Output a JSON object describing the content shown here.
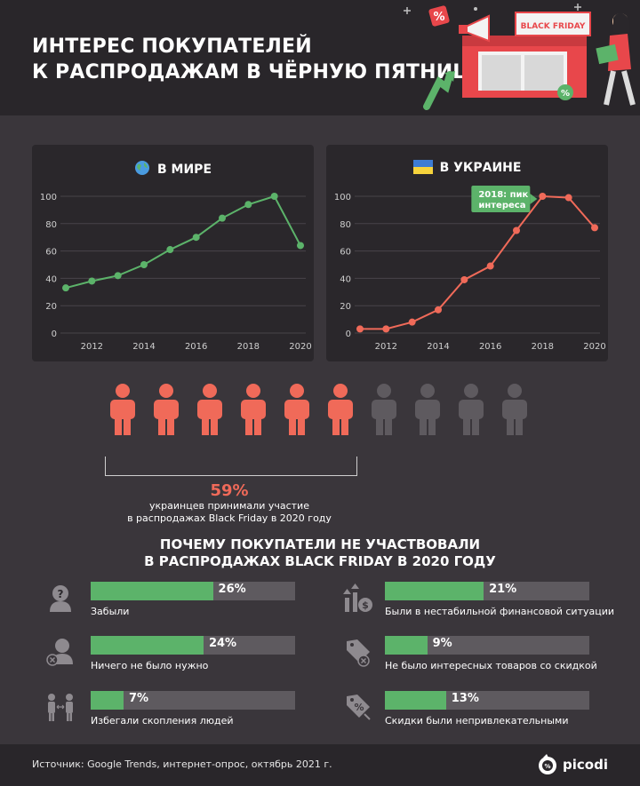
{
  "header": {
    "title_lines": [
      "ИНТЕРЕС ПОКУПАТЕЛЕЙ",
      "К РАСПРОДАЖАМ В ЧЁРНУЮ ПЯТНИЦУ"
    ],
    "banner_text": "BLACK FRIDAY"
  },
  "chart_data": [
    {
      "type": "line",
      "title": "В МИРЕ",
      "title_icon": "globe-icon",
      "x": [
        2011,
        2012,
        2013,
        2014,
        2015,
        2016,
        2017,
        2018,
        2019,
        2020
      ],
      "x_ticks": [
        2012,
        2014,
        2016,
        2018,
        2020
      ],
      "y_ticks": [
        0,
        20,
        40,
        60,
        80,
        100
      ],
      "ylim": [
        0,
        100
      ],
      "series": [
        {
          "values": [
            33,
            38,
            42,
            50,
            61,
            70,
            84,
            94,
            100,
            64
          ],
          "color": "#5cb36a"
        }
      ],
      "grid": true
    },
    {
      "type": "line",
      "title": "В УКРАИНЕ",
      "title_icon": "ukraine-flag-icon",
      "x": [
        2011,
        2012,
        2013,
        2014,
        2015,
        2016,
        2017,
        2018,
        2019,
        2020
      ],
      "x_ticks": [
        2012,
        2014,
        2016,
        2018,
        2020
      ],
      "y_ticks": [
        0,
        20,
        40,
        60,
        80,
        100
      ],
      "ylim": [
        0,
        100
      ],
      "series": [
        {
          "values": [
            3,
            3,
            8,
            17,
            39,
            49,
            75,
            100,
            99,
            77
          ],
          "color": "#f06a59"
        }
      ],
      "grid": true,
      "annotation": {
        "lines": [
          "2018: пик",
          "интереса"
        ],
        "x": 2018,
        "y": 100,
        "color": "#5cb36a"
      }
    }
  ],
  "participation": {
    "total_people": 10,
    "highlighted_people": 6,
    "percent": "59%",
    "caption_lines": [
      "украинцев принимали участие",
      "в распродажах Black Friday в 2020 году"
    ],
    "highlight_color": "#f06a59",
    "rest_color": "#5e5a5f"
  },
  "reasons": {
    "title_lines": [
      "ПОЧЕМУ ПОКУПАТЕЛИ НЕ УЧАСТВОВАЛИ",
      "В РАСПРОДАЖАХ BLACK FRIDAY В 2020 ГОДУ"
    ],
    "bar_scale_max": 100,
    "items": [
      {
        "value": 26,
        "value_label": "26%",
        "label": "Забыли",
        "icon": "question-head-icon"
      },
      {
        "value": 21,
        "value_label": "21%",
        "label": "Были в нестабильной финансовой ситуации",
        "icon": "finance-arrows-icon"
      },
      {
        "value": 24,
        "value_label": "24%",
        "label": "Ничего не было нужно",
        "icon": "person-cross-icon"
      },
      {
        "value": 9,
        "value_label": "9%",
        "label": "Не было интересных товаров со скидкой",
        "icon": "tag-cross-icon"
      },
      {
        "value": 7,
        "value_label": "7%",
        "label": "Избегали скопления людей",
        "icon": "crowd-icon"
      },
      {
        "value": 13,
        "value_label": "13%",
        "label": "Скидки были непривлекательными",
        "icon": "tag-percent-icon"
      }
    ]
  },
  "footer": {
    "source": "Источник: Google Trends, интернет-опрос, октябрь 2021 г.",
    "logo": "picodi"
  },
  "colors": {
    "green": "#5cb36a",
    "red": "#f06a59",
    "panel": "#2a272b",
    "background": "#3a363b"
  }
}
